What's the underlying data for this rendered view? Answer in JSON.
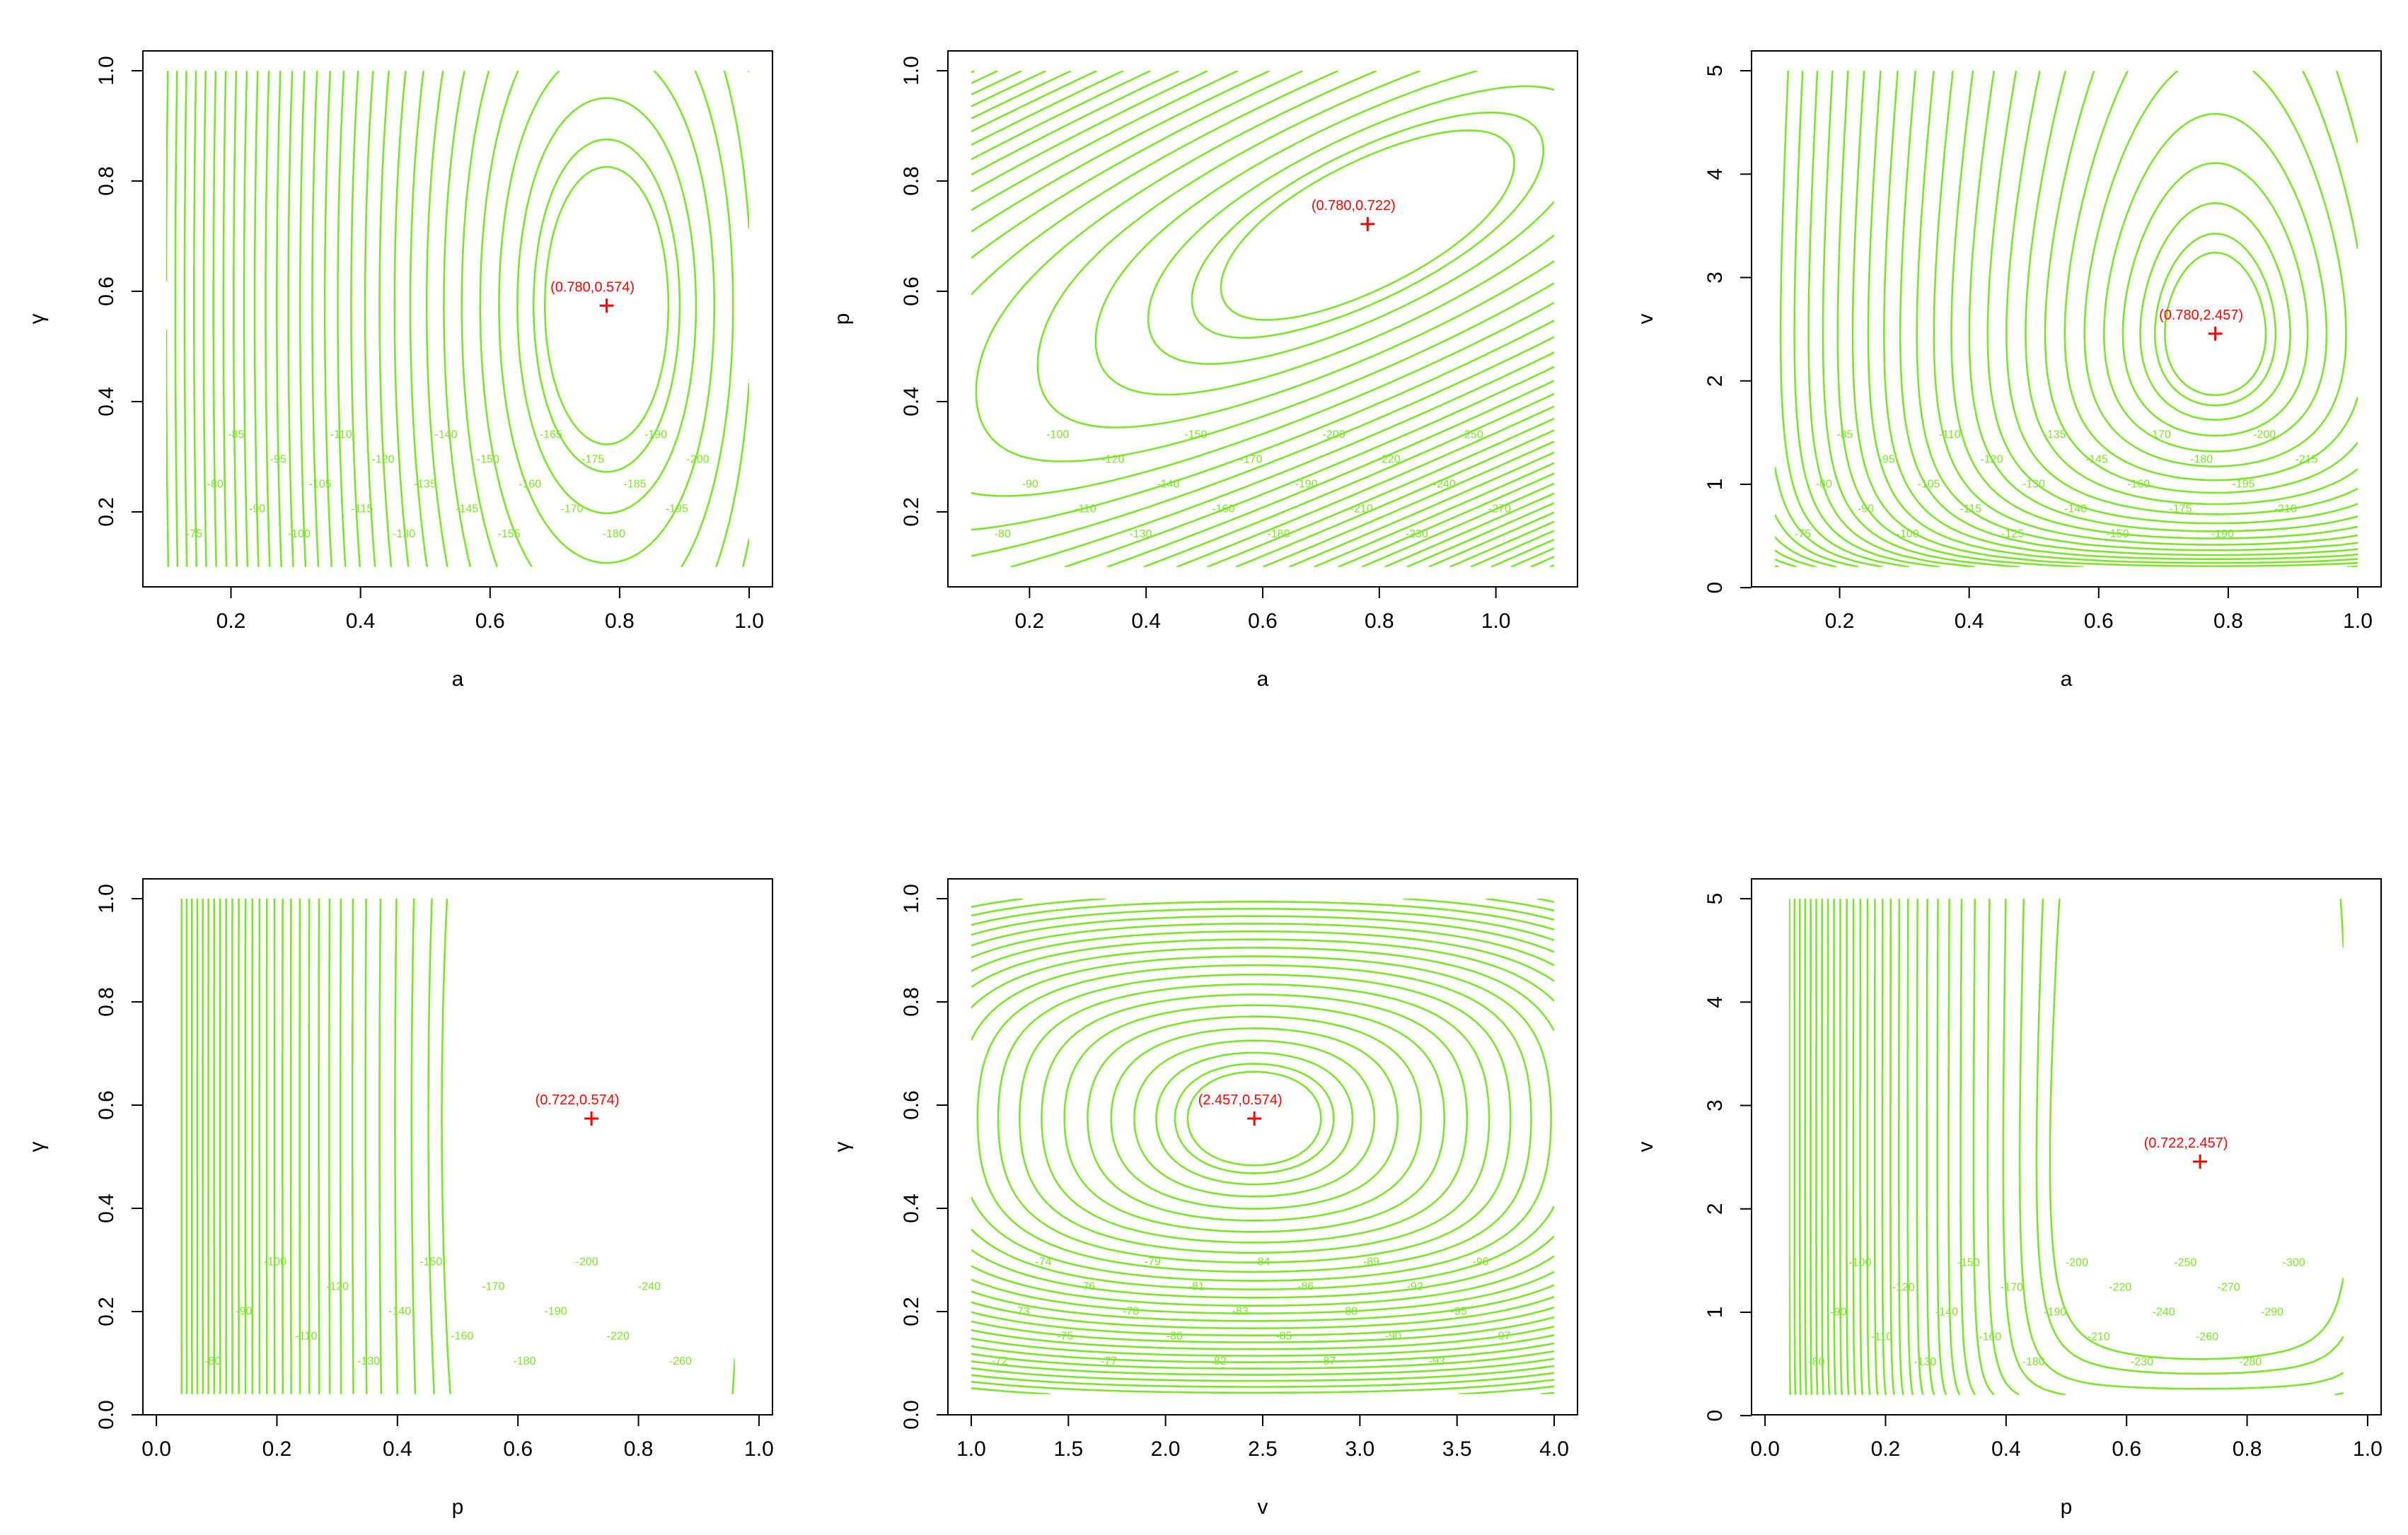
{
  "chart_data": [
    {
      "type": "contour",
      "xlabel": "a",
      "ylabel": "γ",
      "xlim": [
        0.1,
        1.0
      ],
      "ylim": [
        0.1,
        1.0
      ],
      "xticks": [
        "0.2",
        "0.4",
        "0.6",
        "0.8",
        "1.0"
      ],
      "xtick_values": [
        0.2,
        0.4,
        0.6,
        0.8,
        1.0
      ],
      "yticks": [
        "0.2",
        "0.4",
        "0.6",
        "0.8",
        "1.0"
      ],
      "ytick_values": [
        0.2,
        0.4,
        0.6,
        0.8,
        1.0
      ],
      "maximum": {
        "x": 0.78,
        "y": 0.574,
        "label": "(0.780,0.574)"
      },
      "contour_labels": [
        "-75",
        "-80",
        "-85",
        "-90",
        "-95",
        "-100",
        "-105",
        "-110",
        "-115",
        "-120",
        "-130",
        "-135",
        "-140",
        "-145",
        "-150",
        "-155",
        "-160",
        "-165",
        "-170",
        "-175",
        "-180",
        "-185",
        "-190",
        "-195",
        "-200"
      ],
      "color": "#7CE52A",
      "marker_color": "#FF0000"
    },
    {
      "type": "contour",
      "xlabel": "a",
      "ylabel": "p",
      "xlim": [
        0.1,
        1.1
      ],
      "ylim": [
        0.1,
        1.0
      ],
      "xticks": [
        "0.2",
        "0.4",
        "0.6",
        "0.8",
        "1.0"
      ],
      "xtick_values": [
        0.2,
        0.4,
        0.6,
        0.8,
        1.0
      ],
      "yticks": [
        "0.2",
        "0.4",
        "0.6",
        "0.8",
        "1.0"
      ],
      "ytick_values": [
        0.2,
        0.4,
        0.6,
        0.8,
        1.0
      ],
      "maximum": {
        "x": 0.78,
        "y": 0.722,
        "label": "(0.780,0.722)"
      },
      "contour_labels": [
        "-80",
        "-90",
        "-100",
        "-110",
        "-120",
        "-130",
        "-140",
        "-150",
        "-160",
        "-170",
        "-180",
        "-190",
        "-200",
        "-210",
        "-220",
        "-230",
        "-240",
        "-250",
        "-270"
      ],
      "color": "#7CE52A",
      "marker_color": "#FF0000"
    },
    {
      "type": "contour",
      "xlabel": "a",
      "ylabel": "v",
      "xlim": [
        0.1,
        1.0
      ],
      "ylim": [
        0.2,
        5.0
      ],
      "xticks": [
        "0.2",
        "0.4",
        "0.6",
        "0.8",
        "1.0"
      ],
      "xtick_values": [
        0.2,
        0.4,
        0.6,
        0.8,
        1.0
      ],
      "yticks": [
        "0",
        "1",
        "2",
        "3",
        "4",
        "5"
      ],
      "ytick_values": [
        0,
        1,
        2,
        3,
        4,
        5
      ],
      "maximum": {
        "x": 0.78,
        "y": 2.457,
        "label": "(0.780,2.457)"
      },
      "contour_labels": [
        "-75",
        "-80",
        "-85",
        "-90",
        "-95",
        "-100",
        "-105",
        "-110",
        "-115",
        "-120",
        "-125",
        "-130",
        "-135",
        "-140",
        "-145",
        "-150",
        "-160",
        "-170",
        "-175",
        "-180",
        "-190",
        "-195",
        "-200",
        "-210",
        "-215"
      ],
      "color": "#7CE52A",
      "marker_color": "#FF0000"
    },
    {
      "type": "contour",
      "xlabel": "p",
      "ylabel": "γ",
      "xlim": [
        0.04,
        0.96
      ],
      "ylim": [
        0.04,
        1.0
      ],
      "xticks": [
        "0.0",
        "0.2",
        "0.4",
        "0.6",
        "0.8",
        "1.0"
      ],
      "xtick_values": [
        0.0,
        0.2,
        0.4,
        0.6,
        0.8,
        1.0
      ],
      "yticks": [
        "0.0",
        "0.2",
        "0.4",
        "0.6",
        "0.8",
        "1.0"
      ],
      "ytick_values": [
        0.0,
        0.2,
        0.4,
        0.6,
        0.8,
        1.0
      ],
      "maximum": {
        "x": 0.722,
        "y": 0.574,
        "label": "(0.722,0.574)"
      },
      "contour_labels": [
        "-80",
        "-90",
        "-100",
        "-110",
        "-120",
        "-130",
        "-140",
        "-150",
        "-160",
        "-170",
        "-180",
        "-190",
        "-200",
        "-220",
        "-240",
        "-260"
      ],
      "color": "#7CE52A",
      "marker_color": "#FF0000"
    },
    {
      "type": "contour",
      "xlabel": "v",
      "ylabel": "γ",
      "xlim": [
        1.0,
        4.0
      ],
      "ylim": [
        0.04,
        1.0
      ],
      "xticks": [
        "1.0",
        "1.5",
        "2.0",
        "2.5",
        "3.0",
        "3.5",
        "4.0"
      ],
      "xtick_values": [
        1.0,
        1.5,
        2.0,
        2.5,
        3.0,
        3.5,
        4.0
      ],
      "yticks": [
        "0.0",
        "0.2",
        "0.4",
        "0.6",
        "0.8",
        "1.0"
      ],
      "ytick_values": [
        0.0,
        0.2,
        0.4,
        0.6,
        0.8,
        1.0
      ],
      "maximum": {
        "x": 2.457,
        "y": 0.574,
        "label": "(2.457,0.574)"
      },
      "contour_labels": [
        "-72",
        "-73",
        "-74",
        "-75",
        "-76",
        "-77",
        "-78",
        "-79",
        "-80",
        "-81",
        "-82",
        "-83",
        "-84",
        "-85",
        "-86",
        "-87",
        "-88",
        "-89",
        "-90",
        "-92",
        "-93",
        "-95",
        "-96",
        "-97"
      ],
      "color": "#7CE52A",
      "marker_color": "#FF0000"
    },
    {
      "type": "contour",
      "xlabel": "p",
      "ylabel": "v",
      "xlim": [
        0.04,
        0.96
      ],
      "ylim": [
        0.2,
        5.0
      ],
      "xticks": [
        "0.0",
        "0.2",
        "0.4",
        "0.6",
        "0.8",
        "1.0"
      ],
      "xtick_values": [
        0.0,
        0.2,
        0.4,
        0.6,
        0.8,
        1.0
      ],
      "yticks": [
        "0",
        "1",
        "2",
        "3",
        "4",
        "5"
      ],
      "ytick_values": [
        0,
        1,
        2,
        3,
        4,
        5
      ],
      "maximum": {
        "x": 0.722,
        "y": 2.457,
        "label": "(0.722,2.457)"
      },
      "contour_labels": [
        "-80",
        "-90",
        "-100",
        "-110",
        "-120",
        "-130",
        "-140",
        "-150",
        "-160",
        "-170",
        "-180",
        "-190",
        "-200",
        "-210",
        "-220",
        "-230",
        "-240",
        "-250",
        "-260",
        "-270",
        "-280",
        "-290",
        "-300"
      ],
      "color": "#7CE52A",
      "marker_color": "#FF0000"
    }
  ]
}
